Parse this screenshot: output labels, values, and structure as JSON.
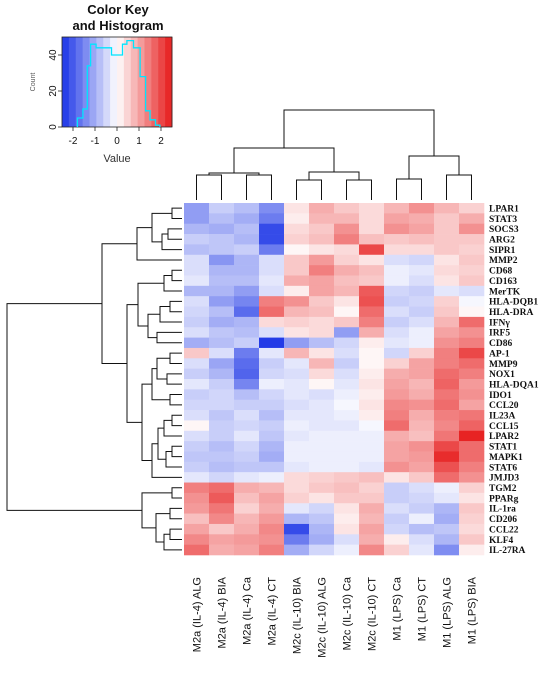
{
  "chart_data": {
    "type": "heatmap",
    "key": {
      "title_line1": "Color Key",
      "title_line2": "and Histogram",
      "xlabel": "Value",
      "ylabel": "Count",
      "xticks": [
        -2,
        -1,
        0,
        1,
        2
      ],
      "yticks": [
        0,
        20,
        40
      ],
      "xlim": [
        -2.5,
        2.5
      ],
      "ylim": [
        0,
        50
      ],
      "colors": {
        "low": "#1a33e6",
        "mid": "#ffffff",
        "high": "#e61a1a",
        "histogram": "#00e5ff"
      },
      "histogram": [
        {
          "x": -1.8,
          "y": 5
        },
        {
          "x": -1.55,
          "y": 10
        },
        {
          "x": -1.35,
          "y": 34
        },
        {
          "x": -1.2,
          "y": 46
        },
        {
          "x": -0.95,
          "y": 44
        },
        {
          "x": -0.55,
          "y": 44
        },
        {
          "x": -0.25,
          "y": 40
        },
        {
          "x": 0.05,
          "y": 40
        },
        {
          "x": 0.25,
          "y": 46
        },
        {
          "x": 0.45,
          "y": 48
        },
        {
          "x": 0.75,
          "y": 44
        },
        {
          "x": 1.05,
          "y": 28
        },
        {
          "x": 1.3,
          "y": 9
        },
        {
          "x": 1.5,
          "y": 4
        },
        {
          "x": 1.75,
          "y": 1
        }
      ]
    },
    "columns": [
      "M2a (IL-4) ALG",
      "M2a (IL-4) BIA",
      "M2a (IL-4) Ca",
      "M2a (IL-4) CT",
      "M2c (IL-10) BIA",
      "M2c (IL-10) ALG",
      "M2c (IL-10) Ca",
      "M2c (IL-10) CT",
      "M1 (LPS) Ca",
      "M1 (LPS) CT",
      "M1 (LPS) ALG",
      "M1 (LPS) BIA"
    ],
    "rows": [
      "LPAR1",
      "STAT3",
      "SOCS3",
      "ARG2",
      "SIPR1",
      "MMP2",
      "CD68",
      "CD163",
      "MerTK",
      "HLA-DQB1",
      "HLA-DRA",
      "IFNγ",
      "IRF5",
      "CD86",
      "AP-1",
      "MMP9",
      "NOX1",
      "HLA-DQA1",
      "IDO1",
      "CCL20",
      "IL23A",
      "CCL15",
      "LPAR2",
      "STAT1",
      "MAPK1",
      "STAT6",
      "JMJD3",
      "TGM2",
      "PPARg",
      "IL-1ra",
      "CD206",
      "CCL22",
      "KLF4",
      "IL-27RA"
    ],
    "values": [
      [
        -1.2,
        -0.6,
        -0.8,
        -1.4,
        0.3,
        0.9,
        0.6,
        0.4,
        0.8,
        1.2,
        0.8,
        0.5
      ],
      [
        -1.2,
        -0.8,
        -1.0,
        -1.6,
        0.2,
        0.8,
        0.8,
        0.4,
        1.0,
        0.9,
        0.6,
        0.9
      ],
      [
        -0.9,
        -1.0,
        -0.8,
        -2.2,
        0.4,
        0.6,
        1.2,
        0.4,
        1.2,
        1.0,
        0.6,
        1.2
      ],
      [
        -0.6,
        -0.7,
        -0.9,
        -2.2,
        0.5,
        0.7,
        1.4,
        0.7,
        0.6,
        0.7,
        0.6,
        0.6
      ],
      [
        -0.8,
        -0.7,
        -0.6,
        -1.6,
        0.1,
        0.3,
        0.4,
        2.0,
        0.4,
        0.4,
        0.6,
        0.5
      ],
      [
        -0.4,
        -1.3,
        -0.9,
        -0.4,
        0.6,
        1.1,
        0.5,
        0.3,
        -0.4,
        -0.5,
        0.3,
        0.6
      ],
      [
        -0.4,
        -0.9,
        -0.9,
        -0.4,
        0.6,
        1.4,
        0.9,
        0.7,
        -0.2,
        -0.3,
        0.4,
        0.5
      ],
      [
        -0.3,
        -0.8,
        -0.8,
        -0.3,
        0.9,
        1.0,
        0.7,
        0.6,
        -0.2,
        -0.4,
        0.3,
        0.6
      ],
      [
        -0.9,
        -0.9,
        -1.2,
        -0.4,
        0.2,
        1.0,
        0.8,
        1.8,
        -0.5,
        -0.6,
        -0.3,
        -0.4
      ],
      [
        -0.4,
        -1.2,
        -1.5,
        1.4,
        1.2,
        0.6,
        0.3,
        1.9,
        -0.6,
        -0.5,
        0.5,
        -0.1
      ],
      [
        -0.5,
        -0.8,
        -1.8,
        1.6,
        0.8,
        0.7,
        0.1,
        1.6,
        -0.4,
        -0.6,
        0.6,
        0.1
      ],
      [
        -0.6,
        -1.0,
        -0.9,
        0.4,
        0.5,
        0.4,
        0.6,
        1.4,
        -0.6,
        -0.4,
        0.8,
        1.6
      ],
      [
        -0.4,
        -0.7,
        -0.8,
        -0.4,
        0.3,
        0.4,
        -1.2,
        0.9,
        -0.4,
        -0.2,
        1.0,
        1.2
      ],
      [
        -1.0,
        -0.8,
        -0.6,
        -2.4,
        -1.2,
        -0.8,
        -0.5,
        0.2,
        -0.3,
        -0.2,
        1.2,
        1.4
      ],
      [
        0.6,
        -0.4,
        -1.6,
        -0.3,
        0.8,
        0.3,
        -0.4,
        0.1,
        -0.5,
        0.5,
        1.4,
        2.0
      ],
      [
        -0.4,
        -1.1,
        -1.8,
        -0.6,
        -0.3,
        0.8,
        -0.6,
        0.1,
        0.5,
        1.0,
        1.4,
        1.6
      ],
      [
        -0.6,
        -0.9,
        -1.9,
        -0.5,
        -0.4,
        0.4,
        -0.4,
        0.2,
        0.9,
        1.0,
        1.6,
        1.4
      ],
      [
        -0.3,
        -0.6,
        -1.5,
        -0.2,
        -0.3,
        0.1,
        -0.3,
        0.3,
        1.0,
        0.8,
        1.7,
        1.1
      ],
      [
        -0.6,
        -0.5,
        -0.8,
        -0.5,
        -0.3,
        -0.4,
        -0.2,
        0.2,
        1.1,
        0.9,
        1.5,
        1.2
      ],
      [
        -0.5,
        -0.5,
        -0.6,
        -0.6,
        -0.4,
        -0.3,
        -0.1,
        0.3,
        1.3,
        1.2,
        1.6,
        1.0
      ],
      [
        -0.4,
        -0.7,
        -0.4,
        -0.8,
        -0.3,
        -0.3,
        -0.2,
        0.2,
        1.4,
        0.9,
        1.4,
        1.5
      ],
      [
        0.1,
        -0.6,
        -0.5,
        -0.6,
        -0.2,
        -0.3,
        -0.3,
        -0.1,
        1.6,
        0.8,
        1.3,
        1.7
      ],
      [
        -0.4,
        -0.6,
        -0.3,
        -0.7,
        -0.3,
        -0.2,
        -0.2,
        -0.2,
        0.9,
        0.7,
        1.5,
        2.4
      ],
      [
        -0.6,
        -0.8,
        -0.5,
        -0.9,
        -0.2,
        -0.2,
        -0.2,
        -0.2,
        1.0,
        1.2,
        2.0,
        1.6
      ],
      [
        -0.7,
        -0.7,
        -0.6,
        -1.0,
        -0.2,
        -0.2,
        -0.2,
        -0.2,
        1.0,
        1.1,
        2.3,
        1.6
      ],
      [
        -0.6,
        -0.8,
        -0.7,
        -0.7,
        -0.3,
        -0.2,
        -0.2,
        -0.3,
        1.2,
        1.0,
        1.9,
        1.4
      ],
      [
        -0.3,
        -0.5,
        -0.3,
        -0.2,
        0.4,
        0.5,
        0.6,
        0.7,
        0.3,
        0.6,
        1.6,
        1.2
      ],
      [
        1.4,
        1.6,
        0.9,
        0.8,
        0.4,
        0.6,
        0.7,
        0.5,
        -0.6,
        -0.4,
        -0.2,
        0.5
      ],
      [
        1.2,
        1.8,
        0.7,
        1.0,
        0.5,
        0.3,
        0.6,
        0.6,
        -0.6,
        -0.5,
        -0.3,
        0.3
      ],
      [
        1.1,
        1.5,
        0.5,
        0.9,
        -0.3,
        -0.5,
        0.3,
        0.9,
        -0.4,
        -0.6,
        -0.9,
        0.6
      ],
      [
        0.7,
        1.3,
        0.8,
        1.1,
        -0.9,
        -0.7,
        0.2,
        0.8,
        -0.6,
        -0.2,
        -1.0,
        0.5
      ],
      [
        1.0,
        0.6,
        0.9,
        1.3,
        -2.2,
        -0.9,
        0.3,
        1.0,
        -0.5,
        -0.8,
        -0.7,
        0.4
      ],
      [
        1.3,
        1.0,
        1.1,
        1.2,
        -1.6,
        -1.0,
        -0.4,
        0.9,
        0.2,
        -0.4,
        -0.9,
        0.6
      ],
      [
        1.6,
        0.9,
        1.0,
        1.4,
        -1.0,
        -0.5,
        -0.2,
        1.3,
        0.5,
        -0.3,
        -1.4,
        0.2
      ]
    ]
  }
}
